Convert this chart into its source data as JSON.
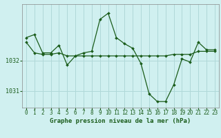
{
  "background_color": "#d0f0f0",
  "grid_color": "#b0d8d8",
  "line_color": "#1a5c1a",
  "marker_color": "#1a5c1a",
  "title": "Graphe pression niveau de la mer (hPa)",
  "xlim": [
    -0.5,
    23.5
  ],
  "ylim": [
    1030.45,
    1033.85
  ],
  "yticks": [
    1031,
    1032
  ],
  "xticks": [
    0,
    1,
    2,
    3,
    4,
    5,
    6,
    7,
    8,
    9,
    10,
    11,
    12,
    13,
    14,
    15,
    16,
    17,
    18,
    19,
    20,
    21,
    22,
    23
  ],
  "series1_x": [
    0,
    1,
    2,
    3,
    4,
    5,
    6,
    7,
    8,
    9,
    10,
    11,
    12,
    13,
    14,
    15,
    16,
    17,
    18,
    19,
    20,
    21,
    22,
    23
  ],
  "series1_y": [
    1032.75,
    1032.85,
    1032.25,
    1032.25,
    1032.5,
    1031.85,
    1032.15,
    1032.25,
    1032.3,
    1033.35,
    1033.55,
    1032.75,
    1032.55,
    1032.4,
    1031.9,
    1030.9,
    1030.65,
    1030.65,
    1031.2,
    1032.05,
    1031.95,
    1032.6,
    1032.35,
    1032.35
  ],
  "series2_x": [
    0,
    1,
    2,
    3,
    4,
    5,
    6,
    7,
    8,
    9,
    10,
    11,
    12,
    13,
    14,
    15,
    16,
    17,
    18,
    19,
    20,
    21,
    22,
    23
  ],
  "series2_y": [
    1032.6,
    1032.25,
    1032.2,
    1032.2,
    1032.25,
    1032.15,
    1032.15,
    1032.15,
    1032.15,
    1032.15,
    1032.15,
    1032.15,
    1032.15,
    1032.15,
    1032.15,
    1032.15,
    1032.15,
    1032.15,
    1032.2,
    1032.2,
    1032.2,
    1032.3,
    1032.3,
    1032.3
  ],
  "title_fontsize": 6.5,
  "tick_fontsize": 5.5
}
